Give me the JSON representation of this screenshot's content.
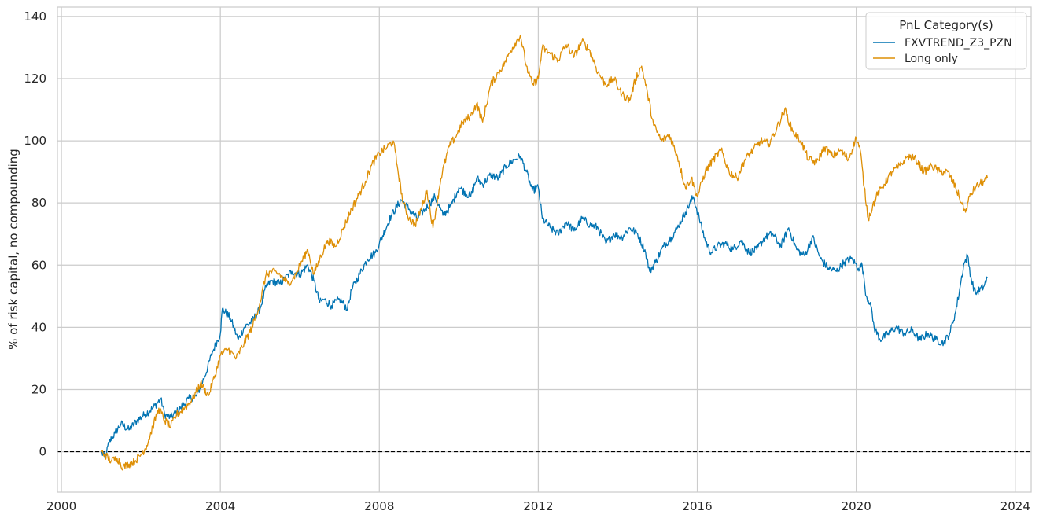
{
  "chart_data": {
    "type": "line",
    "title": "",
    "xlabel": "",
    "ylabel": "% of risk capital, no compounding",
    "xlim": [
      1999.9,
      2024.4
    ],
    "ylim": [
      -13,
      143
    ],
    "x_ticks": [
      2000,
      2004,
      2008,
      2012,
      2016,
      2020,
      2024
    ],
    "y_ticks": [
      0,
      20,
      40,
      60,
      80,
      100,
      120,
      140
    ],
    "grid": true,
    "reference_line": {
      "y": 0,
      "style": "dashed",
      "color": "#000000"
    },
    "legend": {
      "title": "PnL Category(s)",
      "position": "top-right"
    },
    "colors": {
      "grid": "#cccccc",
      "axes_edge": "#cccccc"
    },
    "series": [
      {
        "name": "FXVTREND_Z3_PZN",
        "color": "#0173b2",
        "x": [
          2001.0,
          2001.1,
          2001.2,
          2001.35,
          2001.5,
          2001.7,
          2001.9,
          2002.1,
          2002.3,
          2002.5,
          2002.6,
          2002.75,
          2003.0,
          2003.2,
          2003.4,
          2003.6,
          2003.8,
          2004.0,
          2004.05,
          2004.25,
          2004.45,
          2004.6,
          2004.8,
          2005.0,
          2005.15,
          2005.3,
          2005.5,
          2005.8,
          2006.0,
          2006.2,
          2006.35,
          2006.5,
          2006.6,
          2006.8,
          2007.0,
          2007.2,
          2007.3,
          2007.5,
          2007.7,
          2007.9,
          2008.0,
          2008.3,
          2008.55,
          2008.75,
          2008.95,
          2009.15,
          2009.4,
          2009.6,
          2009.8,
          2010.0,
          2010.3,
          2010.45,
          2010.6,
          2010.8,
          2011.0,
          2011.2,
          2011.4,
          2011.55,
          2011.7,
          2011.85,
          2012.0,
          2012.1,
          2012.3,
          2012.5,
          2012.7,
          2012.9,
          2013.1,
          2013.3,
          2013.5,
          2013.7,
          2013.9,
          2014.1,
          2014.3,
          2014.5,
          2014.7,
          2014.8,
          2014.95,
          2015.15,
          2015.35,
          2015.5,
          2015.7,
          2015.9,
          2016.05,
          2016.2,
          2016.35,
          2016.5,
          2016.7,
          2016.9,
          2017.1,
          2017.3,
          2017.5,
          2017.7,
          2017.9,
          2018.1,
          2018.3,
          2018.5,
          2018.7,
          2018.9,
          2019.1,
          2019.3,
          2019.5,
          2019.7,
          2019.9,
          2020.05,
          2020.15,
          2020.25,
          2020.35,
          2020.45,
          2020.6,
          2020.8,
          2021.0,
          2021.2,
          2021.4,
          2021.6,
          2021.8,
          2022.0,
          2022.2,
          2022.35,
          2022.5,
          2022.6,
          2022.7,
          2022.8,
          2022.9,
          2023.0,
          2023.2,
          2023.3
        ],
        "y": [
          0,
          -2,
          3,
          6,
          9,
          7,
          10,
          12,
          14,
          17,
          12,
          11,
          14,
          17,
          18,
          24,
          32,
          38,
          46,
          43,
          36,
          40,
          42,
          46,
          53,
          55,
          54,
          58,
          57,
          60,
          55,
          48,
          49,
          47,
          49,
          46,
          52,
          57,
          62,
          64,
          67,
          76,
          81,
          78,
          75,
          78,
          82,
          76,
          79,
          85,
          82,
          88,
          86,
          89,
          88,
          92,
          94,
          95,
          90,
          84,
          85,
          75,
          72,
          70,
          74,
          71,
          75,
          73,
          72,
          67,
          70,
          69,
          72,
          70,
          64,
          58,
          61,
          66,
          69,
          72,
          77,
          82,
          75,
          68,
          64,
          66,
          67,
          65,
          68,
          64,
          65,
          69,
          70,
          66,
          72,
          65,
          63,
          69,
          62,
          59,
          58,
          61,
          62,
          59,
          60,
          50,
          48,
          40,
          36,
          38,
          40,
          38,
          39,
          36,
          38,
          36,
          35,
          38,
          45,
          52,
          60,
          63,
          55,
          51,
          53,
          56
        ]
      },
      {
        "name": "Long only",
        "color": "#de8f05",
        "x": [
          2001.0,
          2001.1,
          2001.25,
          2001.4,
          2001.55,
          2001.7,
          2001.85,
          2002.0,
          2002.15,
          2002.3,
          2002.45,
          2002.6,
          2002.75,
          2002.9,
          2003.1,
          2003.3,
          2003.5,
          2003.7,
          2003.9,
          2004.0,
          2004.2,
          2004.4,
          2004.6,
          2004.8,
          2005.0,
          2005.15,
          2005.3,
          2005.5,
          2005.7,
          2005.9,
          2006.0,
          2006.2,
          2006.35,
          2006.5,
          2006.7,
          2006.9,
          2007.1,
          2007.3,
          2007.5,
          2007.65,
          2007.8,
          2008.0,
          2008.2,
          2008.35,
          2008.45,
          2008.6,
          2008.75,
          2008.9,
          2009.05,
          2009.2,
          2009.35,
          2009.55,
          2009.75,
          2009.95,
          2010.1,
          2010.3,
          2010.45,
          2010.6,
          2010.8,
          2011.0,
          2011.15,
          2011.3,
          2011.45,
          2011.55,
          2011.7,
          2011.85,
          2012.0,
          2012.1,
          2012.3,
          2012.5,
          2012.7,
          2012.9,
          2013.1,
          2013.3,
          2013.5,
          2013.7,
          2013.9,
          2014.1,
          2014.3,
          2014.45,
          2014.6,
          2014.75,
          2014.9,
          2015.1,
          2015.3,
          2015.5,
          2015.7,
          2015.85,
          2016.0,
          2016.2,
          2016.4,
          2016.6,
          2016.8,
          2017.0,
          2017.2,
          2017.4,
          2017.6,
          2017.8,
          2018.0,
          2018.2,
          2018.4,
          2018.6,
          2018.8,
          2019.0,
          2019.2,
          2019.4,
          2019.6,
          2019.8,
          2020.0,
          2020.1,
          2020.2,
          2020.3,
          2020.5,
          2020.7,
          2020.9,
          2021.1,
          2021.3,
          2021.5,
          2021.7,
          2021.9,
          2022.1,
          2022.3,
          2022.5,
          2022.65,
          2022.75,
          2022.85,
          2023.0,
          2023.2,
          2023.3
        ],
        "y": [
          0,
          -1,
          -3,
          -2,
          -5,
          -4,
          -3,
          -1,
          2,
          8,
          14,
          10,
          8,
          12,
          14,
          17,
          22,
          18,
          26,
          31,
          33,
          30,
          35,
          40,
          48,
          57,
          58,
          57,
          54,
          57,
          60,
          65,
          57,
          62,
          68,
          66,
          72,
          78,
          83,
          87,
          92,
          96,
          98,
          100,
          92,
          80,
          75,
          73,
          78,
          84,
          72,
          88,
          98,
          102,
          106,
          108,
          112,
          106,
          118,
          122,
          125,
          129,
          132,
          134,
          124,
          118,
          120,
          130,
          128,
          126,
          131,
          127,
          132,
          129,
          122,
          118,
          120,
          115,
          113,
          120,
          124,
          115,
          105,
          100,
          102,
          95,
          85,
          88,
          82,
          90,
          94,
          97,
          90,
          88,
          94,
          97,
          100,
          99,
          104,
          110,
          103,
          100,
          94,
          93,
          98,
          95,
          97,
          94,
          101,
          97,
          85,
          75,
          82,
          86,
          90,
          92,
          95,
          94,
          90,
          92,
          90,
          90,
          85,
          80,
          77,
          82,
          85,
          87,
          88
        ]
      }
    ]
  }
}
